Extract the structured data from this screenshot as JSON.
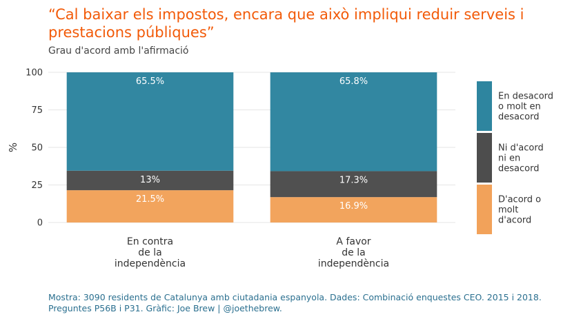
{
  "chart_data": {
    "type": "bar",
    "stacked": true,
    "title": "“Cal baixar els impostos, encara que això impliqui reduir serveis i prestacions públiques”",
    "subtitle": "Grau d'acord amb l'afirmació",
    "ylabel": "%",
    "ylim": [
      0,
      100
    ],
    "yticks": [
      "0",
      "25",
      "50",
      "75",
      "100"
    ],
    "categories": [
      [
        "En contra",
        "de la",
        "independència"
      ],
      [
        "A favor",
        "de la",
        "independència"
      ]
    ],
    "series": [
      {
        "name": "D'acord o molt d'acord",
        "name_lines": [
          "D'acord o",
          "molt",
          "d'acord"
        ],
        "values": [
          21.5,
          16.9
        ],
        "labels": [
          "21.5%",
          "16.9%"
        ],
        "color": "#f2a25a"
      },
      {
        "name": "Ni d'acord ni en desacord",
        "name_lines": [
          "Ni d'acord",
          "ni en",
          "desacord"
        ],
        "values": [
          13,
          17.3
        ],
        "labels": [
          "13%",
          "17.3%"
        ],
        "color": "#4d4d4d"
      },
      {
        "name": "En desacord o molt en desacord",
        "name_lines": [
          "En desacord",
          "o molt en",
          "desacord"
        ],
        "values": [
          65.5,
          65.8
        ],
        "labels": [
          "65.5%",
          "65.8%"
        ],
        "color": "#2e859f"
      }
    ],
    "grid": true,
    "legend": "right",
    "caption": "Mostra: 3090 residents de Catalunya amb ciutadania espanyola. Dades: Combinació enquestes CEO. 2015 i 2018. Preguntes P56B i P31. Gràfic: Joe Brew | @joethebrew."
  }
}
